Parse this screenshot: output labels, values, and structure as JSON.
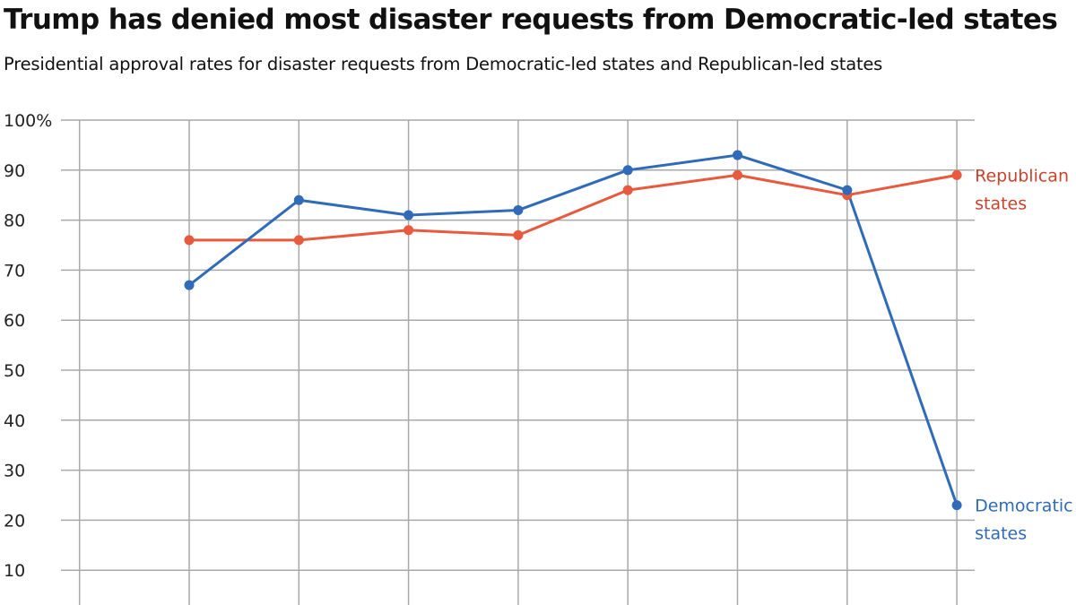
{
  "chart_data": {
    "type": "line",
    "title": "Trump has denied most disaster requests from Democratic-led states",
    "subtitle": "Presidential approval rates for disaster requests from Democratic-led states and Republican-led states",
    "y_ticks": [
      "100%",
      "90",
      "80",
      "70",
      "60",
      "50",
      "40",
      "30",
      "20",
      "10"
    ],
    "ylim": [
      0,
      100
    ],
    "grid": true,
    "x": [
      1,
      2,
      3,
      4,
      5,
      6,
      7,
      8
    ],
    "series": [
      {
        "name": "Republican states",
        "label_lines": [
          "Republican",
          "states"
        ],
        "color": "#e8593e",
        "values": [
          76,
          76,
          78,
          77,
          86,
          89,
          85,
          89
        ]
      },
      {
        "name": "Democratic states",
        "label_lines": [
          "Democratic",
          "states"
        ],
        "color": "#2f6bb8",
        "values": [
          67,
          84,
          81,
          82,
          90,
          93,
          86,
          23
        ]
      }
    ],
    "label_colors": {
      "Republican states": "#c9432b",
      "Democratic states": "#2f6bb8"
    },
    "gridline_color": "#a9a9a9"
  }
}
